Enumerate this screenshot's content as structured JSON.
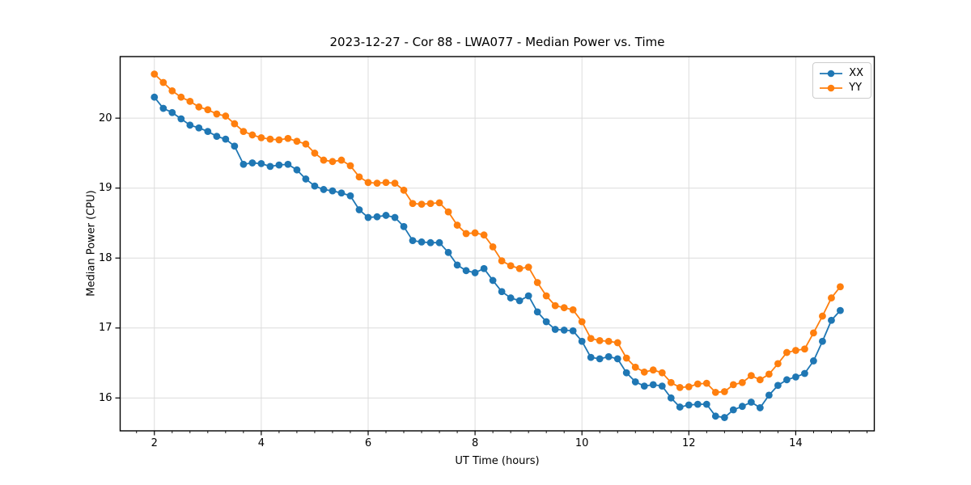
{
  "figure": {
    "background": "#ffffff"
  },
  "chart_data": {
    "type": "line",
    "title": "2023-12-27 - Cor 88 - LWA077 - Median Power vs. Time",
    "xlabel": "UT Time (hours)",
    "ylabel": "Median Power (CPU)",
    "xlim": [
      1.36,
      15.47
    ],
    "ylim": [
      15.53,
      20.88
    ],
    "xticks": [
      2,
      4,
      6,
      8,
      10,
      12,
      14
    ],
    "yticks": [
      16,
      17,
      18,
      19,
      20
    ],
    "x_minor_tick_step": 0.3333,
    "grid": true,
    "grid_color": "#dcdcdc",
    "spine_color": "#000000",
    "legend": {
      "position": "upper-right"
    },
    "x": [
      2.0,
      2.167,
      2.333,
      2.5,
      2.667,
      2.833,
      3.0,
      3.167,
      3.333,
      3.5,
      3.667,
      3.833,
      4.0,
      4.167,
      4.333,
      4.5,
      4.667,
      4.833,
      5.0,
      5.167,
      5.333,
      5.5,
      5.667,
      5.833,
      6.0,
      6.167,
      6.333,
      6.5,
      6.667,
      6.833,
      7.0,
      7.167,
      7.333,
      7.5,
      7.667,
      7.833,
      8.0,
      8.167,
      8.333,
      8.5,
      8.667,
      8.833,
      9.0,
      9.167,
      9.333,
      9.5,
      9.667,
      9.833,
      10.0,
      10.167,
      10.333,
      10.5,
      10.667,
      10.833,
      11.0,
      11.167,
      11.333,
      11.5,
      11.667,
      11.833,
      12.0,
      12.167,
      12.333,
      12.5,
      12.667,
      12.833,
      13.0,
      13.167,
      13.333,
      13.5,
      13.667,
      13.833,
      14.0,
      14.167,
      14.333,
      14.5,
      14.667,
      14.833
    ],
    "series": [
      {
        "name": "XX",
        "color": "#1f77b4",
        "marker": "circle",
        "values": [
          20.3,
          20.14,
          20.08,
          19.99,
          19.9,
          19.86,
          19.81,
          19.74,
          19.7,
          19.6,
          19.34,
          19.36,
          19.35,
          19.31,
          19.33,
          19.34,
          19.26,
          19.13,
          19.03,
          18.98,
          18.96,
          18.93,
          18.89,
          18.69,
          18.58,
          18.59,
          18.61,
          18.58,
          18.45,
          18.25,
          18.23,
          18.22,
          18.22,
          18.08,
          17.9,
          17.82,
          17.79,
          17.85,
          17.68,
          17.52,
          17.43,
          17.39,
          17.46,
          17.23,
          17.09,
          16.98,
          16.97,
          16.96,
          16.81,
          16.58,
          16.56,
          16.59,
          16.56,
          16.36,
          16.23,
          16.17,
          16.19,
          16.17,
          16.0,
          15.87,
          15.9,
          15.91,
          15.91,
          15.74,
          15.72,
          15.83,
          15.88,
          15.94,
          15.86,
          16.04,
          16.18,
          16.26,
          16.3,
          16.35,
          16.53,
          16.81,
          17.11,
          17.25
        ]
      },
      {
        "name": "YY",
        "color": "#ff7f0e",
        "marker": "circle",
        "values": [
          20.63,
          20.51,
          20.39,
          20.3,
          20.24,
          20.16,
          20.12,
          20.06,
          20.03,
          19.92,
          19.81,
          19.76,
          19.72,
          19.7,
          19.69,
          19.71,
          19.67,
          19.63,
          19.5,
          19.4,
          19.38,
          19.4,
          19.32,
          19.16,
          19.08,
          19.07,
          19.08,
          19.07,
          18.97,
          18.78,
          18.77,
          18.78,
          18.79,
          18.66,
          18.47,
          18.35,
          18.36,
          18.33,
          18.16,
          17.96,
          17.89,
          17.85,
          17.87,
          17.65,
          17.46,
          17.32,
          17.29,
          17.26,
          17.09,
          16.85,
          16.82,
          16.81,
          16.79,
          16.57,
          16.44,
          16.37,
          16.4,
          16.36,
          16.22,
          16.15,
          16.16,
          16.2,
          16.21,
          16.08,
          16.09,
          16.19,
          16.22,
          16.32,
          16.26,
          16.34,
          16.49,
          16.65,
          16.68,
          16.7,
          16.93,
          17.17,
          17.43,
          17.59
        ]
      }
    ]
  }
}
